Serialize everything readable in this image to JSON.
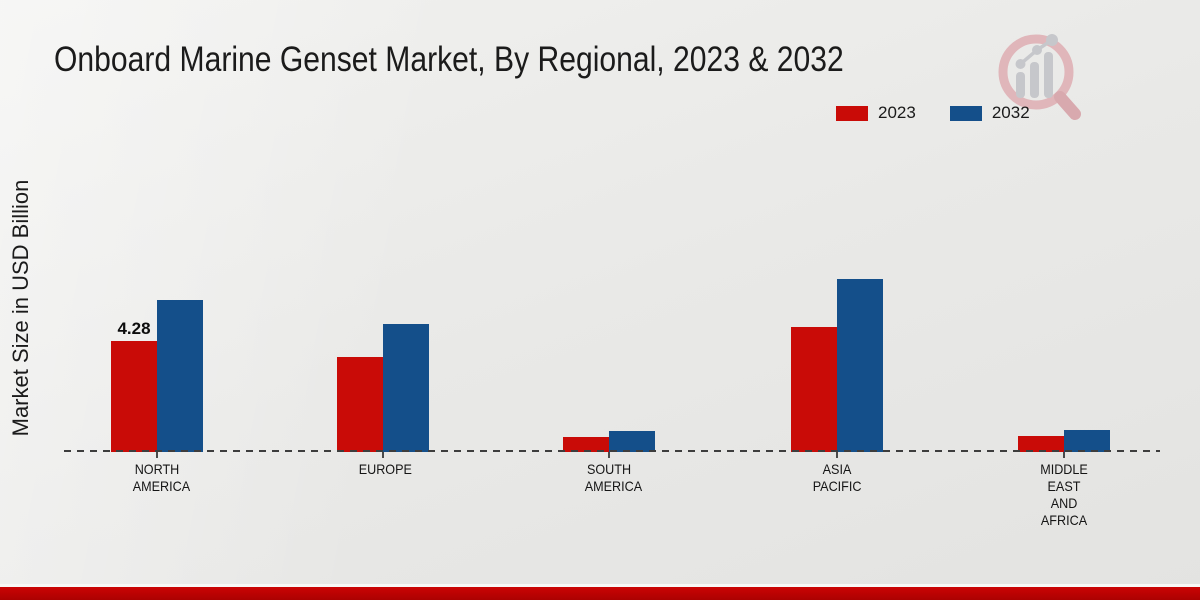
{
  "page": {
    "title": "Onboard Marine Genset Market, By Regional, 2023 & 2032",
    "ylabel": "Market Size in USD Billion",
    "logo": "market-research-magnifier-logo"
  },
  "legend": {
    "items": [
      {
        "label": "2023",
        "color": "#c90b07"
      },
      {
        "label": "2032",
        "color": "#144f8a"
      }
    ]
  },
  "chart_data": {
    "type": "bar",
    "title": "Onboard Marine Genset Market, By Regional, 2023 & 2032",
    "xlabel": "",
    "ylabel": "Market Size in USD Billion",
    "unit": "USD Billion",
    "categories": [
      "NORTH AMERICA",
      "EUROPE",
      "SOUTH AMERICA",
      "ASIA PACIFIC",
      "MIDDLE EAST AND AFRICA"
    ],
    "series": [
      {
        "name": "2023",
        "color": "#c90b07",
        "values": [
          4.28,
          3.67,
          0.58,
          4.83,
          0.62
        ]
      },
      {
        "name": "2032",
        "color": "#144f8a",
        "values": [
          5.87,
          4.94,
          0.81,
          6.68,
          0.85
        ]
      }
    ],
    "value_labels": [
      {
        "series": "2023",
        "category": "NORTH AMERICA",
        "text": "4.28"
      }
    ],
    "ylim": [
      0,
      7.5
    ],
    "grid": false,
    "y_axis_visible": false,
    "baseline_style": "dashed",
    "legend_position": "top-right"
  },
  "colors": {
    "accent_red": "#c90b07",
    "accent_blue": "#144f8a",
    "footer_band": "#c00404",
    "dashed_line": "#3d3d3d",
    "text": "#1b1b1b",
    "background_start": "#f1f1ef",
    "background_end": "#e3e3e1",
    "logo_ring": "#e0b4b8",
    "logo_gray": "#c5c6ca"
  }
}
